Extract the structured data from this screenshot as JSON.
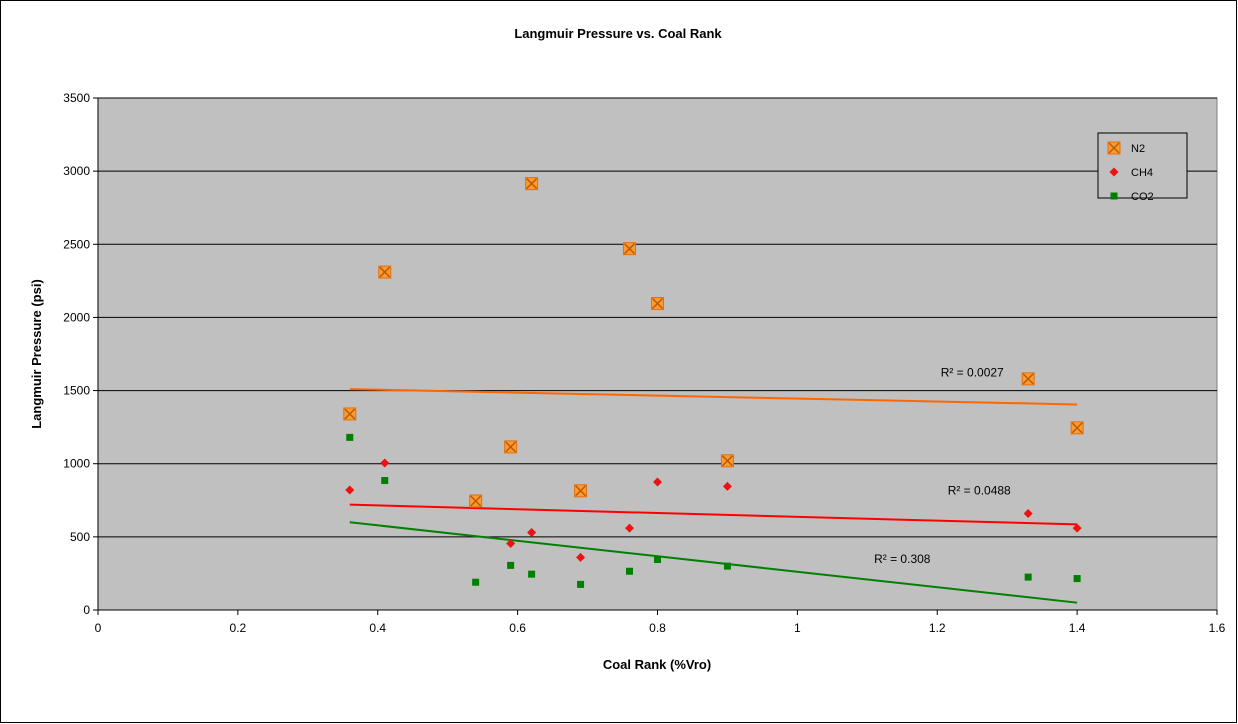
{
  "chart_data": {
    "type": "scatter",
    "title": "Langmuir Pressure vs. Coal Rank",
    "xlabel": "Coal Rank (%Vro)",
    "ylabel": "Langmuir Pressure (psi)",
    "xlim": [
      0,
      1.6
    ],
    "ylim": [
      0,
      3500
    ],
    "x_ticks": [
      0,
      0.2,
      0.4,
      0.6,
      0.8,
      1,
      1.2,
      1.4,
      1.6
    ],
    "x_tick_labels": [
      "0",
      "0.2",
      "0.4",
      "0.6",
      "0.8",
      "1",
      "1.2",
      "1.4",
      "1.6"
    ],
    "y_ticks": [
      0,
      500,
      1000,
      1500,
      2000,
      2500,
      3000,
      3500
    ],
    "y_tick_labels": [
      "0",
      "500",
      "1000",
      "1500",
      "2000",
      "2500",
      "3000",
      "3500"
    ],
    "grid": "horizontal",
    "legend": "top-right",
    "series": [
      {
        "name": "N2",
        "color": "#FF9933",
        "marker": "square-x",
        "points": [
          [
            0.36,
            1340
          ],
          [
            0.41,
            2310
          ],
          [
            0.54,
            745
          ],
          [
            0.59,
            1115
          ],
          [
            0.62,
            2915
          ],
          [
            0.69,
            815
          ],
          [
            0.76,
            2470
          ],
          [
            0.8,
            2095
          ],
          [
            0.9,
            1020
          ],
          [
            1.33,
            1580
          ],
          [
            1.4,
            1245
          ]
        ],
        "trendline": {
          "x": [
            0.36,
            1.4
          ],
          "y": [
            1510,
            1405
          ],
          "color": "#FF6600",
          "r2_label": "R² = 0.0027",
          "label_anchor": [
            1.25,
            1595
          ]
        }
      },
      {
        "name": "CH4",
        "color": "#EE1111",
        "marker": "diamond",
        "points": [
          [
            0.36,
            820
          ],
          [
            0.41,
            1005
          ],
          [
            0.59,
            455
          ],
          [
            0.62,
            530
          ],
          [
            0.69,
            360
          ],
          [
            0.76,
            560
          ],
          [
            0.8,
            875
          ],
          [
            0.9,
            845
          ],
          [
            1.33,
            660
          ],
          [
            1.4,
            560
          ]
        ],
        "trendline": {
          "x": [
            0.36,
            1.4
          ],
          "y": [
            720,
            585
          ],
          "color": "#FF0000",
          "r2_label": "R² = 0.0488",
          "label_anchor": [
            1.26,
            790
          ]
        }
      },
      {
        "name": "CO2",
        "color": "#008000",
        "marker": "square",
        "points": [
          [
            0.36,
            1180
          ],
          [
            0.41,
            885
          ],
          [
            0.54,
            190
          ],
          [
            0.59,
            305
          ],
          [
            0.62,
            245
          ],
          [
            0.69,
            175
          ],
          [
            0.76,
            265
          ],
          [
            0.8,
            345
          ],
          [
            0.9,
            300
          ],
          [
            1.33,
            225
          ],
          [
            1.4,
            215
          ]
        ],
        "trendline": {
          "x": [
            0.36,
            1.4
          ],
          "y": [
            600,
            50
          ],
          "color": "#008000",
          "r2_label": "R² = 0.308",
          "label_anchor": [
            1.15,
            320
          ]
        }
      }
    ]
  }
}
